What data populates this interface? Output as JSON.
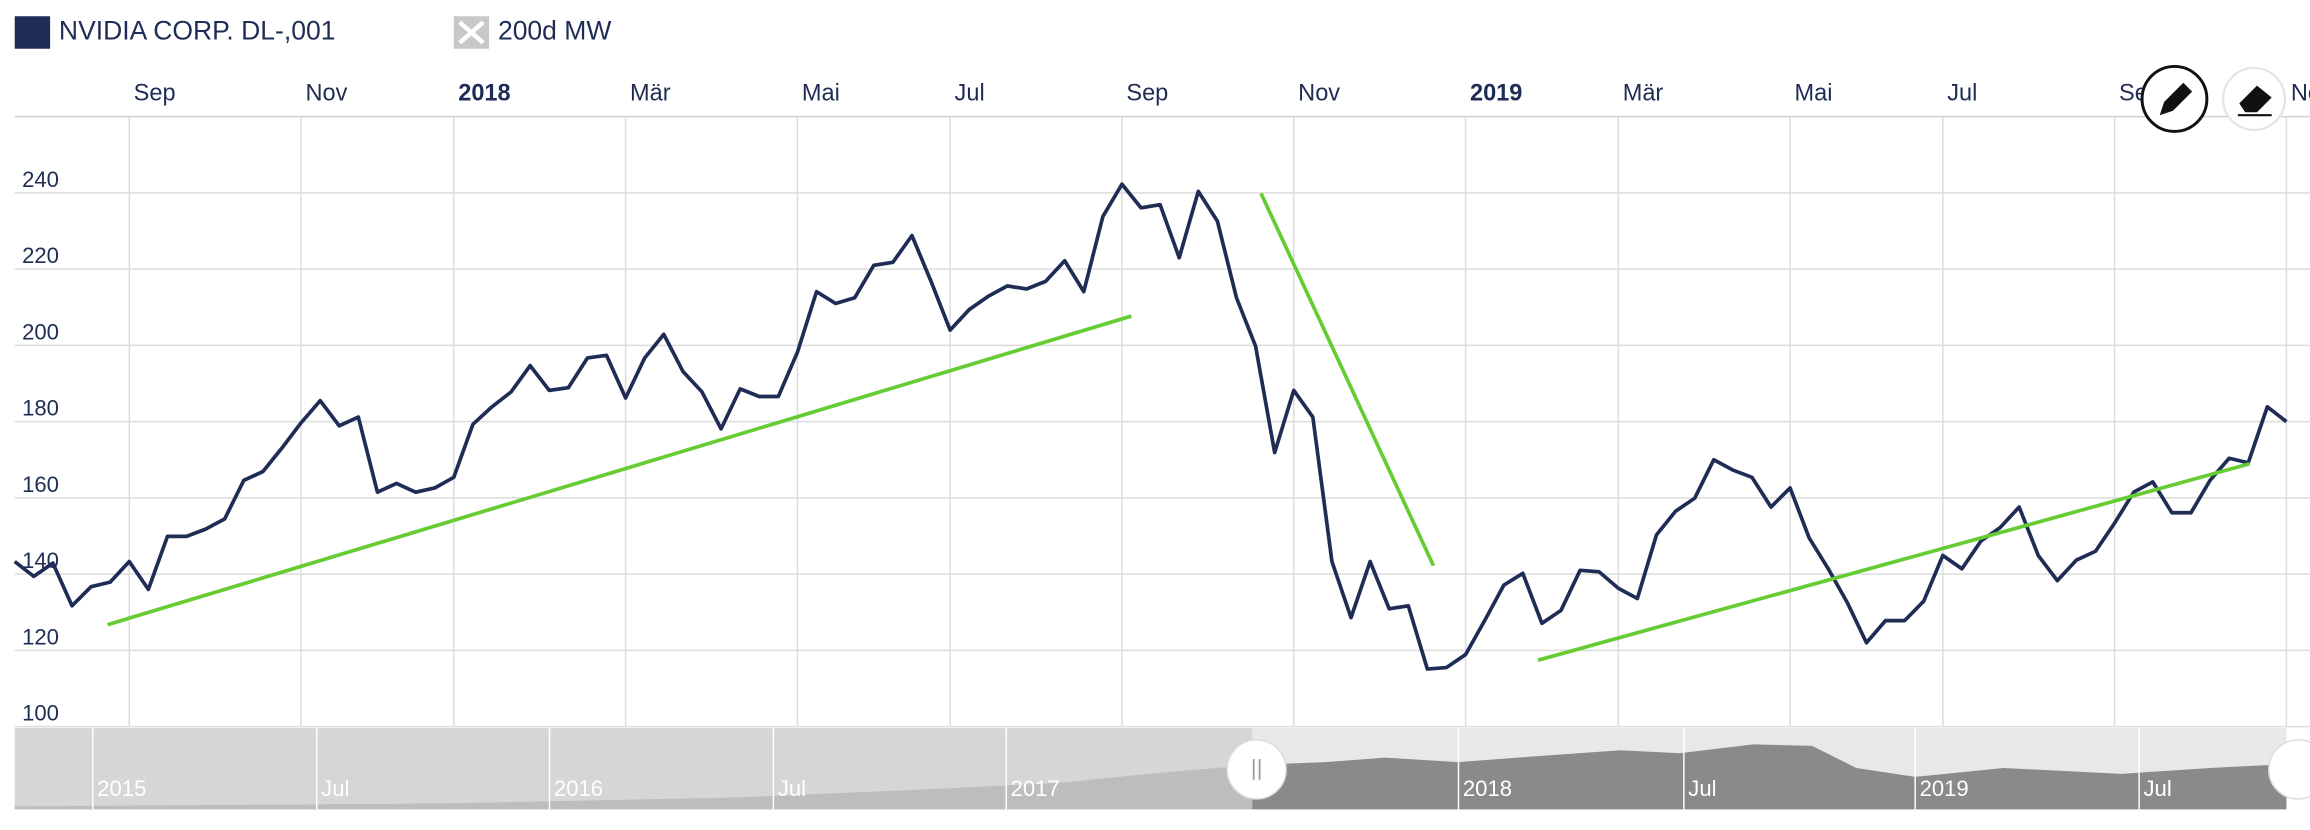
{
  "chart_data": {
    "type": "line",
    "categories": [
      null,
      null,
      null,
      null,
      null,
      null,
      "Sep",
      null,
      null,
      null,
      null,
      null,
      null,
      null,
      null,
      "Nov",
      null,
      null,
      null,
      null,
      null,
      null,
      null,
      "2018",
      null,
      null,
      null,
      null,
      null,
      null,
      null,
      null,
      "Mär",
      null,
      null,
      null,
      null,
      null,
      null,
      null,
      null,
      "Mai",
      null,
      null,
      null,
      null,
      null,
      null,
      null,
      "Jul",
      null,
      null,
      null,
      null,
      null,
      null,
      null,
      null,
      "Sep",
      null,
      null,
      null,
      null,
      null,
      null,
      null,
      null,
      "Nov",
      null,
      null,
      null,
      null,
      null,
      null,
      null,
      null,
      "2019",
      null,
      null,
      null,
      null,
      null,
      null,
      null,
      "Mär",
      null,
      null,
      null,
      null,
      null,
      null,
      null,
      null,
      "Mai",
      null,
      null,
      null,
      null,
      null,
      null,
      null,
      "Jul",
      null,
      null,
      null,
      null,
      null,
      null,
      null,
      null,
      "Sep",
      null,
      null,
      null,
      null,
      null,
      null,
      null,
      null,
      "Nov"
    ],
    "series": [
      {
        "name": "NVIDIA CORP. DL-,001",
        "color": "#1f2d56",
        "values": [
          143.3,
          139.4,
          142.9,
          131.7,
          136.7,
          137.9,
          143.3,
          136.0,
          149.9,
          149.9,
          151.8,
          154.5,
          164.6,
          166.9,
          173.1,
          179.7,
          185.5,
          178.9,
          181.2,
          161.5,
          163.8,
          161.5,
          162.6,
          165.4,
          179.3,
          183.9,
          187.8,
          194.7,
          188.2,
          188.9,
          196.7,
          197.4,
          186.2,
          196.7,
          202.9,
          193.2,
          187.8,
          178.1,
          188.6,
          186.6,
          186.6,
          198.2,
          214.1,
          211.0,
          212.5,
          221.0,
          221.8,
          228.8,
          216.8,
          204.0,
          209.4,
          212.9,
          215.6,
          214.8,
          216.8,
          222.2,
          214.1,
          233.8,
          242.3,
          236.1,
          236.9,
          223.0,
          240.4,
          232.6,
          212.5,
          199.8,
          171.9,
          188.2,
          181.2,
          143.3,
          128.6,
          143.3,
          130.9,
          131.7,
          115.1,
          115.5,
          118.9,
          127.8,
          137.1,
          140.2,
          127.1,
          130.5,
          141.0,
          140.6,
          136.3,
          133.6,
          150.3,
          156.5,
          159.9,
          170.0,
          167.3,
          165.4,
          157.6,
          162.6,
          149.5,
          141.4,
          132.5,
          122.0,
          127.8,
          127.8,
          132.9,
          144.9,
          141.4,
          148.7,
          152.2,
          157.6,
          144.9,
          138.3,
          143.7,
          146.0,
          153.4,
          161.5,
          164.2,
          156.1,
          156.1,
          164.6,
          170.4,
          169.2,
          183.9,
          180.0
        ]
      },
      {
        "name": "200d MW",
        "color": "#c8c8c8",
        "visible": false
      }
    ],
    "ylim": [
      100,
      260
    ],
    "yticks": [
      100,
      120,
      140,
      160,
      180,
      200,
      220,
      240
    ],
    "grid": true,
    "navigator_labels": [
      "2015",
      "Jul",
      "2016",
      "Jul",
      "2017",
      "2018",
      "Jul",
      "2019",
      "Jul"
    ]
  }
}
